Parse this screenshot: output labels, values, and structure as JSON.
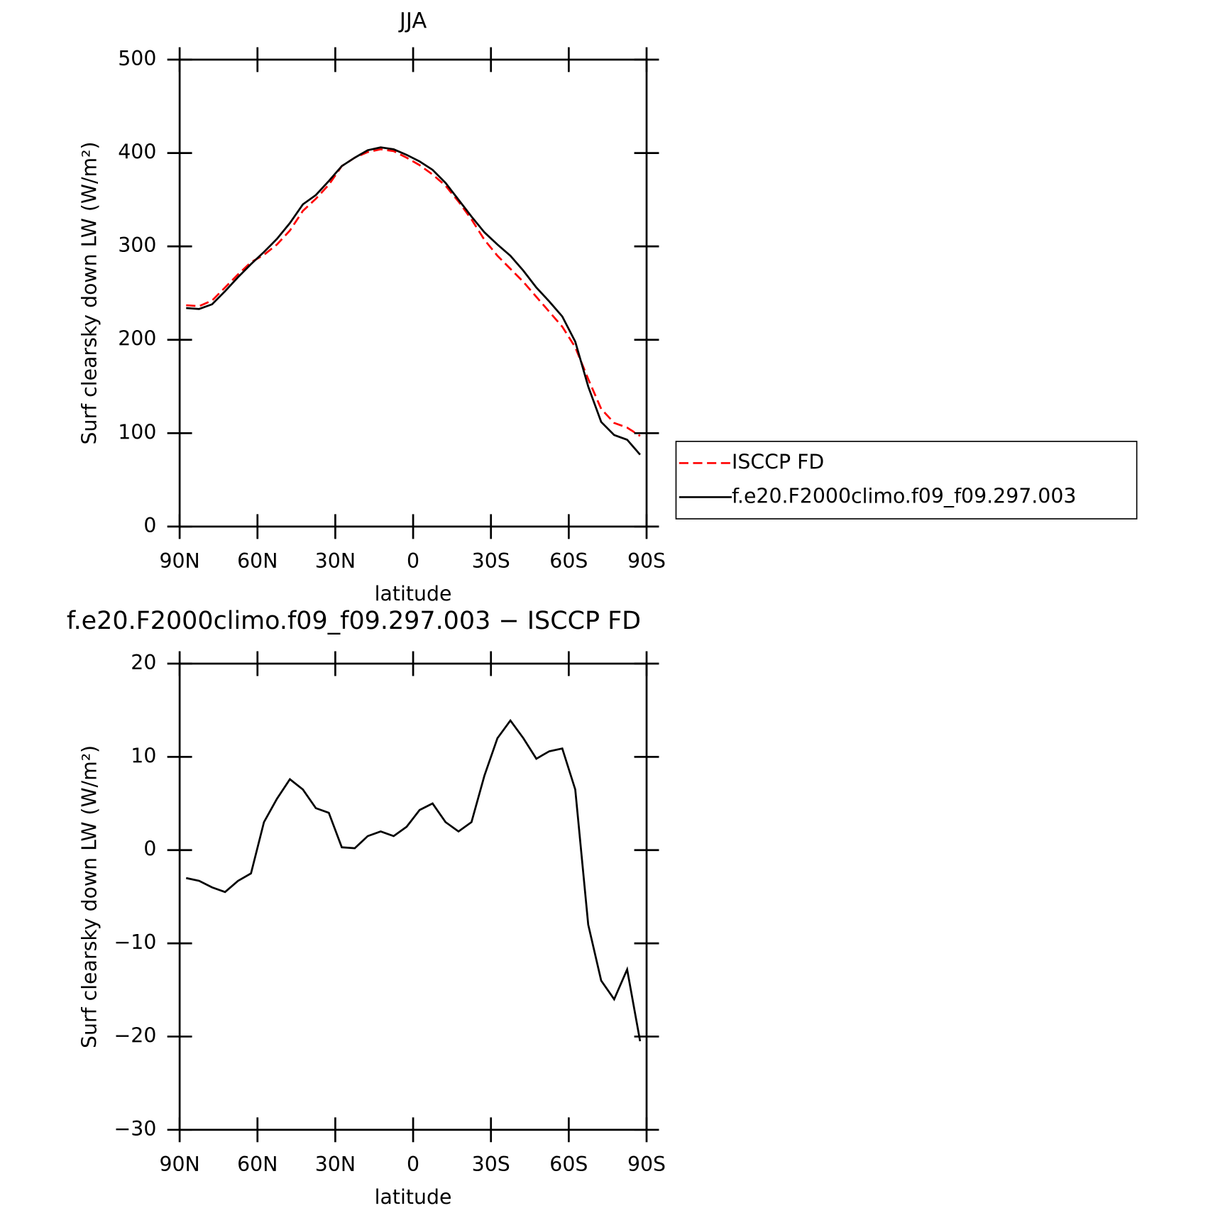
{
  "chart_data": [
    {
      "type": "line",
      "title": "JJA",
      "x_label": "latitude",
      "y_label": "Surf clearsky down LW (W/m²)",
      "x": [
        87.5,
        82.5,
        77.5,
        72.5,
        67.5,
        62.5,
        57.5,
        52.5,
        47.5,
        42.5,
        37.5,
        32.5,
        27.5,
        22.5,
        17.5,
        12.5,
        7.5,
        2.5,
        -2.5,
        -7.5,
        -12.5,
        -17.5,
        -22.5,
        -27.5,
        -32.5,
        -37.5,
        -42.5,
        -47.5,
        -52.5,
        -57.5,
        -62.5,
        -67.5,
        -72.5,
        -77.5,
        -82.5,
        -87.5
      ],
      "series": [
        {
          "name": "ISCCP FD",
          "color": "#ff0000",
          "linestyle": "dashed",
          "values": [
            237,
            236,
            242,
            256,
            270,
            283,
            291,
            302,
            317,
            338,
            351,
            366,
            386,
            395,
            401,
            404,
            402,
            395,
            387,
            377,
            365,
            348,
            329,
            307,
            290,
            276,
            262,
            246,
            230,
            214,
            192,
            158,
            126,
            111,
            106,
            97
          ]
        },
        {
          "name": "f.e20.F2000climo.f09_f09.297.003",
          "color": "#000000",
          "linestyle": "solid",
          "values": [
            234,
            233,
            238,
            252,
            267,
            281,
            294,
            308,
            325,
            345,
            355,
            370,
            386,
            395,
            403,
            406,
            404,
            398,
            391,
            382,
            368,
            350,
            332,
            315,
            302,
            290,
            274,
            256,
            241,
            225,
            198,
            150,
            112,
            98,
            93,
            77
          ]
        }
      ],
      "xlim": [
        90,
        -90
      ],
      "xticks": [
        {
          "value": 90,
          "label": "90N"
        },
        {
          "value": 60,
          "label": "60N"
        },
        {
          "value": 30,
          "label": "30N"
        },
        0,
        {
          "value": -30,
          "label": "30S"
        },
        {
          "value": -60,
          "label": "60S"
        },
        {
          "value": -90,
          "label": "90S"
        }
      ],
      "ylim": [
        0,
        500
      ],
      "yticks": [
        0,
        100,
        200,
        300,
        400,
        500
      ],
      "legend": "right"
    },
    {
      "type": "line",
      "title": "f.e20.F2000climo.f09_f09.297.003 − ISCCP FD",
      "x_label": "latitude",
      "y_label": "Surf clearsky down LW (W/m²)",
      "x": [
        87.5,
        82.5,
        77.5,
        72.5,
        67.5,
        62.5,
        57.5,
        52.5,
        47.5,
        42.5,
        37.5,
        32.5,
        27.5,
        22.5,
        17.5,
        12.5,
        7.5,
        2.5,
        -2.5,
        -7.5,
        -12.5,
        -17.5,
        -22.5,
        -27.5,
        -32.5,
        -37.5,
        -42.5,
        -47.5,
        -52.5,
        -57.5,
        -62.5,
        -67.5,
        -72.5,
        -77.5,
        -82.5,
        -87.5
      ],
      "series": [
        {
          "color": "#000000",
          "linestyle": "solid",
          "values": [
            -3,
            -3.3,
            -4,
            -4.5,
            -3.3,
            -2.5,
            3,
            5.5,
            7.6,
            6.5,
            4.5,
            4,
            0.3,
            0.2,
            1.5,
            2,
            1.5,
            2.5,
            4.3,
            5,
            3,
            2,
            3,
            8,
            12,
            13.9,
            12,
            9.8,
            10.6,
            10.9,
            6.5,
            -8,
            -14,
            -16,
            -12.8,
            -20.5
          ]
        }
      ],
      "xlim": [
        90,
        -90
      ],
      "xticks": [
        {
          "value": 90,
          "label": "90N"
        },
        {
          "value": 60,
          "label": "60N"
        },
        {
          "value": 30,
          "label": "30N"
        },
        0,
        {
          "value": -30,
          "label": "30S"
        },
        {
          "value": -60,
          "label": "60S"
        },
        {
          "value": -90,
          "label": "90S"
        }
      ],
      "ylim": [
        -30,
        20
      ],
      "yticks": [
        {
          "value": -30,
          "label": "−30"
        },
        {
          "value": -20,
          "label": "−20"
        },
        {
          "value": -10,
          "label": "−10"
        },
        0,
        10,
        20
      ]
    }
  ]
}
